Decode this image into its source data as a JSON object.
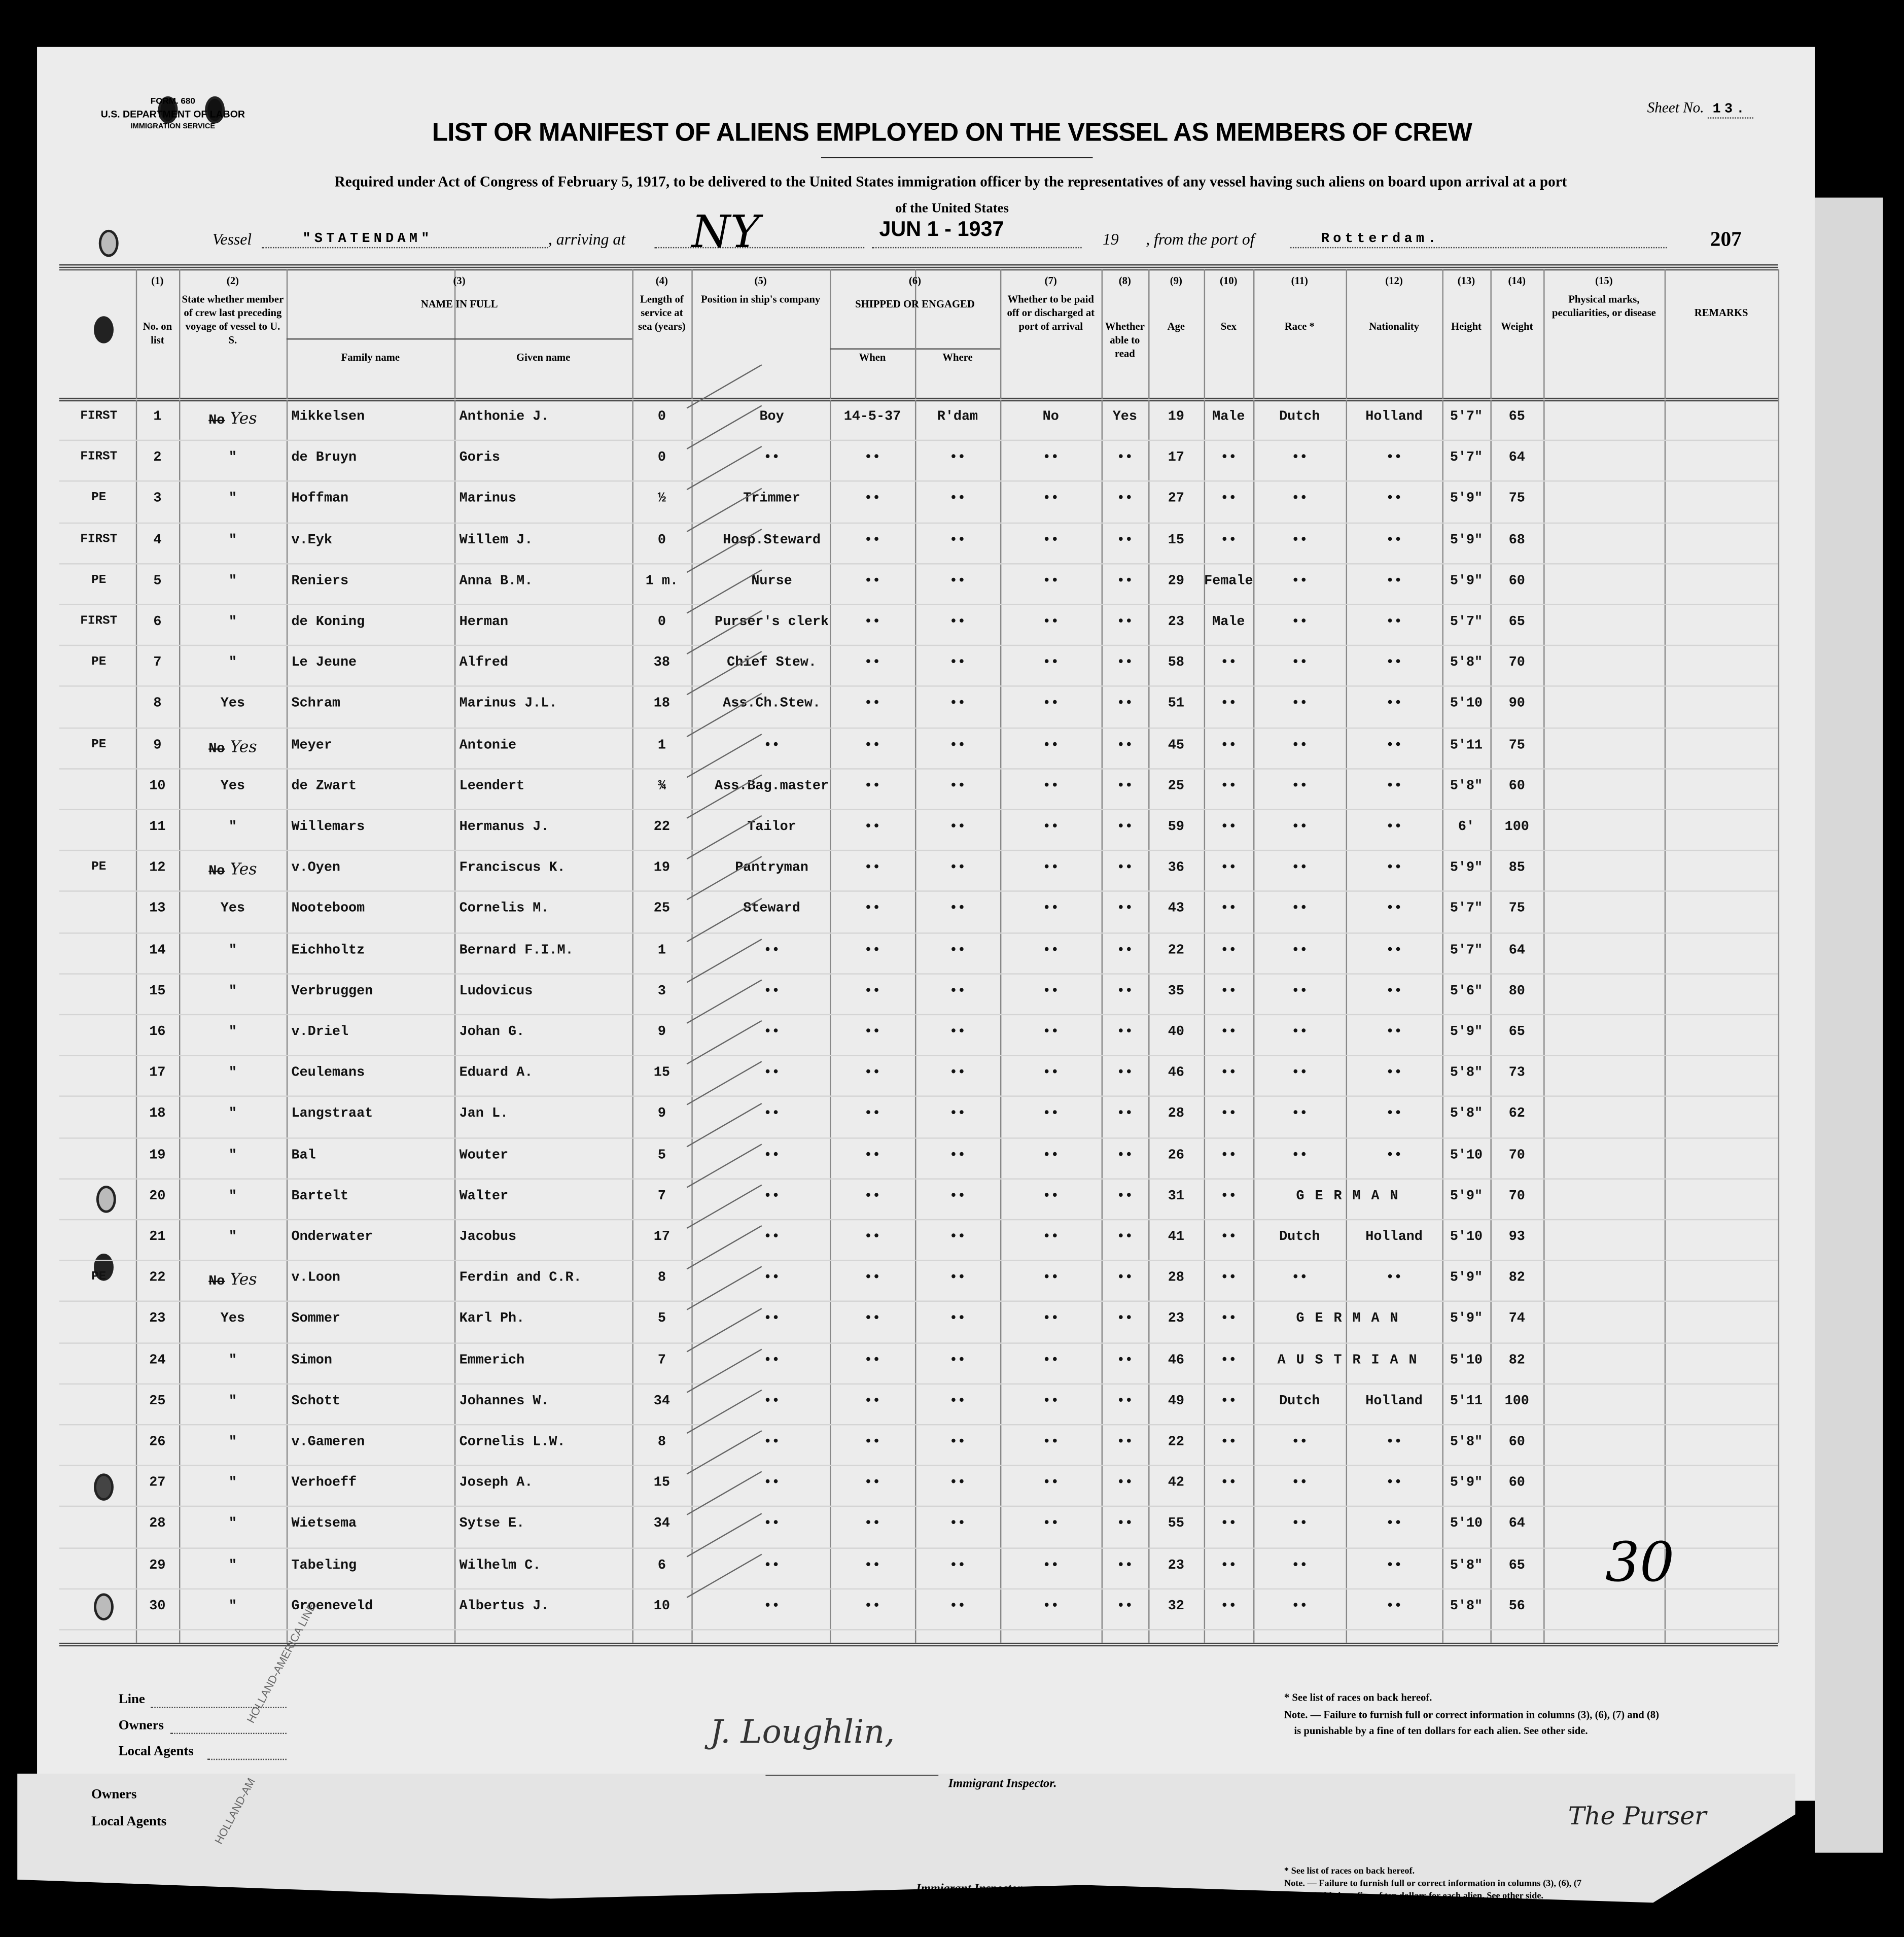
{
  "form": {
    "number": "FORM. 680",
    "department": "U.S. DEPARTMENT OF LABOR",
    "service": "IMMIGRATION SERVICE"
  },
  "sheet": {
    "label": "Sheet No.",
    "value": "13."
  },
  "title": "LIST OR MANIFEST OF ALIENS EMPLOYED ON THE VESSEL AS MEMBERS OF CREW",
  "subtitle": "Required under Act of Congress of February 5, 1917, to be delivered to the United States immigration officer by the representatives of any vessel having such aliens on board upon arrival at a port",
  "subtitle2": "of the United States",
  "vessel": {
    "label": "Vessel",
    "name": "\"STATENDAM\"",
    "arriving_label": ", arriving at",
    "arriving_at": "NY",
    "date_stamp": "JUN 1 - 1937",
    "year_label": "19",
    "from_label": ", from the port of",
    "port": "Rotterdam.",
    "page_number": "207"
  },
  "columns": [
    {
      "num": "(1)",
      "label": "No. on list"
    },
    {
      "num": "(2)",
      "label": "State whether member of crew last preceding voyage of vessel to U. S."
    },
    {
      "num": "(3)",
      "label": "NAME IN FULL",
      "sub": [
        "Family name",
        "Given name"
      ]
    },
    {
      "num": "(4)",
      "label": "Length of service at sea (years)"
    },
    {
      "num": "(5)",
      "label": "Position in ship's company"
    },
    {
      "num": "(6)",
      "label": "SHIPPED OR ENGAGED",
      "sub": [
        "When",
        "Where"
      ]
    },
    {
      "num": "(7)",
      "label": "Whether to be paid off or discharged at port of arrival"
    },
    {
      "num": "(8)",
      "label": "Whether able to read"
    },
    {
      "num": "(9)",
      "label": "Age"
    },
    {
      "num": "(10)",
      "label": "Sex"
    },
    {
      "num": "(11)",
      "label": "Race *"
    },
    {
      "num": "(12)",
      "label": "Nationality"
    },
    {
      "num": "(13)",
      "label": "Height"
    },
    {
      "num": "(14)",
      "label": "Weight"
    },
    {
      "num": "(15)",
      "label": "Physical marks, peculiarities, or disease"
    },
    {
      "num": "",
      "label": "REMARKS"
    }
  ],
  "rows": [
    {
      "margin": "FIRST",
      "no": "1",
      "state_struck": "No",
      "state": "Yes",
      "family": "Mikkelsen",
      "given": "Anthonie J.",
      "length": "0",
      "position": "Boy",
      "when": "14-5-37",
      "where": "R'dam",
      "paid": "No",
      "read": "Yes",
      "age": "19",
      "sex": "Male",
      "race": "Dutch",
      "nationality": "Holland",
      "height": "5'7\"",
      "weight": "65"
    },
    {
      "margin": "FIRST",
      "no": "2",
      "state": "\"",
      "family": "de Bruyn",
      "given": "Goris",
      "length": "0",
      "position": "••",
      "when": "••",
      "where": "••",
      "paid": "••",
      "read": "••",
      "age": "17",
      "sex": "••",
      "race": "••",
      "nationality": "••",
      "height": "5'7\"",
      "weight": "64"
    },
    {
      "margin": "PE",
      "no": "3",
      "state": "\"",
      "family": "Hoffman",
      "given": "Marinus",
      "length": "½",
      "position": "Trimmer",
      "when": "••",
      "where": "••",
      "paid": "••",
      "read": "••",
      "age": "27",
      "sex": "••",
      "race": "••",
      "nationality": "••",
      "height": "5'9\"",
      "weight": "75"
    },
    {
      "margin": "FIRST",
      "no": "4",
      "state": "\"",
      "family": "v.Eyk",
      "given": "Willem J.",
      "length": "0",
      "position": "Hosp.Steward",
      "when": "••",
      "where": "••",
      "paid": "••",
      "read": "••",
      "age": "15",
      "sex": "••",
      "race": "••",
      "nationality": "••",
      "height": "5'9\"",
      "weight": "68"
    },
    {
      "margin": "PE",
      "no": "5",
      "state": "\"",
      "family": "Reniers",
      "given": "Anna B.M.",
      "length": "1 m.",
      "position": "Nurse",
      "when": "••",
      "where": "••",
      "paid": "••",
      "read": "••",
      "age": "29",
      "sex": "Female",
      "race": "••",
      "nationality": "••",
      "height": "5'9\"",
      "weight": "60"
    },
    {
      "margin": "FIRST",
      "no": "6",
      "state": "\"",
      "family": "de Koning",
      "given": "Herman",
      "length": "0",
      "position": "Purser's clerk",
      "when": "••",
      "where": "••",
      "paid": "••",
      "read": "••",
      "age": "23",
      "sex": "Male",
      "race": "••",
      "nationality": "••",
      "height": "5'7\"",
      "weight": "65"
    },
    {
      "margin": "PE",
      "no": "7",
      "state": "\"",
      "family": "Le Jeune",
      "given": "Alfred",
      "length": "38",
      "position": "Chief Stew.",
      "when": "••",
      "where": "••",
      "paid": "••",
      "read": "••",
      "age": "58",
      "sex": "••",
      "race": "••",
      "nationality": "••",
      "height": "5'8\"",
      "weight": "70"
    },
    {
      "margin": "",
      "no": "8",
      "state": "Yes",
      "family": "Schram",
      "given": "Marinus J.L.",
      "length": "18",
      "position": "Ass.Ch.Stew.",
      "when": "••",
      "where": "••",
      "paid": "••",
      "read": "••",
      "age": "51",
      "sex": "••",
      "race": "••",
      "nationality": "••",
      "height": "5'10",
      "weight": "90"
    },
    {
      "margin": "PE",
      "no": "9",
      "state_struck": "No",
      "state": "Yes",
      "family": "Meyer",
      "given": "Antonie",
      "length": "1",
      "position": "••",
      "when": "••",
      "where": "••",
      "paid": "••",
      "read": "••",
      "age": "45",
      "sex": "••",
      "race": "••",
      "nationality": "••",
      "height": "5'11",
      "weight": "75"
    },
    {
      "margin": "",
      "no": "10",
      "state": "Yes",
      "family": "de Zwart",
      "given": "Leendert",
      "length": "¾",
      "position": "Ass.Bag.master",
      "when": "••",
      "where": "••",
      "paid": "••",
      "read": "••",
      "age": "25",
      "sex": "••",
      "race": "••",
      "nationality": "••",
      "height": "5'8\"",
      "weight": "60"
    },
    {
      "margin": "",
      "no": "11",
      "state": "\"",
      "family": "Willemars",
      "given": "Hermanus J.",
      "length": "22",
      "position": "Tailor",
      "when": "••",
      "where": "••",
      "paid": "••",
      "read": "••",
      "age": "59",
      "sex": "••",
      "race": "••",
      "nationality": "••",
      "height": "6'",
      "weight": "100"
    },
    {
      "margin": "PE",
      "no": "12",
      "state_struck": "No",
      "state": "Yes",
      "family": "v.Oyen",
      "given": "Franciscus K.",
      "length": "19",
      "position": "Pantryman",
      "when": "••",
      "where": "••",
      "paid": "••",
      "read": "••",
      "age": "36",
      "sex": "••",
      "race": "••",
      "nationality": "••",
      "height": "5'9\"",
      "weight": "85"
    },
    {
      "margin": "",
      "no": "13",
      "state": "Yes",
      "family": "Nooteboom",
      "given": "Cornelis M.",
      "length": "25",
      "position": "Steward",
      "when": "••",
      "where": "••",
      "paid": "••",
      "read": "••",
      "age": "43",
      "sex": "••",
      "race": "••",
      "nationality": "••",
      "height": "5'7\"",
      "weight": "75"
    },
    {
      "margin": "",
      "no": "14",
      "state": "\"",
      "family": "Eichholtz",
      "given": "Bernard F.I.M.",
      "length": "1",
      "position": "••",
      "when": "••",
      "where": "••",
      "paid": "••",
      "read": "••",
      "age": "22",
      "sex": "••",
      "race": "••",
      "nationality": "••",
      "height": "5'7\"",
      "weight": "64"
    },
    {
      "margin": "",
      "no": "15",
      "state": "\"",
      "family": "Verbruggen",
      "given": "Ludovicus",
      "length": "3",
      "position": "••",
      "when": "••",
      "where": "••",
      "paid": "••",
      "read": "••",
      "age": "35",
      "sex": "••",
      "race": "••",
      "nationality": "••",
      "height": "5'6\"",
      "weight": "80"
    },
    {
      "margin": "",
      "no": "16",
      "state": "\"",
      "family": "v.Driel",
      "given": "Johan G.",
      "length": "9",
      "position": "••",
      "when": "••",
      "where": "••",
      "paid": "••",
      "read": "••",
      "age": "40",
      "sex": "••",
      "race": "••",
      "nationality": "••",
      "height": "5'9\"",
      "weight": "65"
    },
    {
      "margin": "",
      "no": "17",
      "state": "\"",
      "family": "Ceulemans",
      "given": "Eduard A.",
      "length": "15",
      "position": "••",
      "when": "••",
      "where": "••",
      "paid": "••",
      "read": "••",
      "age": "46",
      "sex": "••",
      "race": "••",
      "nationality": "••",
      "height": "5'8\"",
      "weight": "73"
    },
    {
      "margin": "",
      "no": "18",
      "state": "\"",
      "family": "Langstraat",
      "given": "Jan L.",
      "length": "9",
      "position": "••",
      "when": "••",
      "where": "••",
      "paid": "••",
      "read": "••",
      "age": "28",
      "sex": "••",
      "race": "••",
      "nationality": "••",
      "height": "5'8\"",
      "weight": "62"
    },
    {
      "margin": "",
      "no": "19",
      "state": "\"",
      "family": "Bal",
      "given": "Wouter",
      "length": "5",
      "position": "••",
      "when": "••",
      "where": "••",
      "paid": "••",
      "read": "••",
      "age": "26",
      "sex": "••",
      "race": "••",
      "nationality": "••",
      "height": "5'10",
      "weight": "70"
    },
    {
      "margin": "",
      "no": "20",
      "state": "\"",
      "family": "Bartelt",
      "given": "Walter",
      "length": "7",
      "position": "••",
      "when": "••",
      "where": "••",
      "paid": "••",
      "read": "••",
      "age": "31",
      "sex": "••",
      "race": "G E R M A N",
      "nationality": "",
      "height": "5'9\"",
      "weight": "70"
    },
    {
      "margin": "",
      "no": "21",
      "state": "\"",
      "family": "Onderwater",
      "given": "Jacobus",
      "length": "17",
      "position": "••",
      "when": "••",
      "where": "••",
      "paid": "••",
      "read": "••",
      "age": "41",
      "sex": "••",
      "race": "Dutch",
      "nationality": "Holland",
      "height": "5'10",
      "weight": "93"
    },
    {
      "margin": "PE",
      "no": "22",
      "state_struck": "No",
      "state": "Yes",
      "family": "v.Loon",
      "given": "Ferdin and C.R.",
      "length": "8",
      "position": "••",
      "when": "••",
      "where": "••",
      "paid": "••",
      "read": "••",
      "age": "28",
      "sex": "••",
      "race": "••",
      "nationality": "••",
      "height": "5'9\"",
      "weight": "82"
    },
    {
      "margin": "",
      "no": "23",
      "state": "Yes",
      "family": "Sommer",
      "given": "Karl Ph.",
      "length": "5",
      "position": "••",
      "when": "••",
      "where": "••",
      "paid": "••",
      "read": "••",
      "age": "23",
      "sex": "••",
      "race": "G E R M A N",
      "nationality": "",
      "height": "5'9\"",
      "weight": "74"
    },
    {
      "margin": "",
      "no": "24",
      "state": "\"",
      "family": "Simon",
      "given": "Emmerich",
      "length": "7",
      "position": "••",
      "when": "••",
      "where": "••",
      "paid": "••",
      "read": "••",
      "age": "46",
      "sex": "••",
      "race": "A U S T R I A N",
      "nationality": "",
      "height": "5'10",
      "weight": "82"
    },
    {
      "margin": "",
      "no": "25",
      "state": "\"",
      "family": "Schott",
      "given": "Johannes W.",
      "length": "34",
      "position": "••",
      "when": "••",
      "where": "••",
      "paid": "••",
      "read": "••",
      "age": "49",
      "sex": "••",
      "race": "Dutch",
      "nationality": "Holland",
      "height": "5'11",
      "weight": "100"
    },
    {
      "margin": "",
      "no": "26",
      "state": "\"",
      "family": "v.Gameren",
      "given": "Cornelis L.W.",
      "length": "8",
      "position": "••",
      "when": "••",
      "where": "••",
      "paid": "••",
      "read": "••",
      "age": "22",
      "sex": "••",
      "race": "••",
      "nationality": "••",
      "height": "5'8\"",
      "weight": "60"
    },
    {
      "margin": "",
      "no": "27",
      "state": "\"",
      "family": "Verhoeff",
      "given": "Joseph A.",
      "length": "15",
      "position": "••",
      "when": "••",
      "where": "••",
      "paid": "••",
      "read": "••",
      "age": "42",
      "sex": "••",
      "race": "••",
      "nationality": "••",
      "height": "5'9\"",
      "weight": "60"
    },
    {
      "margin": "",
      "no": "28",
      "state": "\"",
      "family": "Wietsema",
      "given": "Sytse E.",
      "length": "34",
      "position": "••",
      "when": "••",
      "where": "••",
      "paid": "••",
      "read": "••",
      "age": "55",
      "sex": "••",
      "race": "••",
      "nationality": "••",
      "height": "5'10",
      "weight": "64"
    },
    {
      "margin": "",
      "no": "29",
      "state": "\"",
      "family": "Tabeling",
      "given": "Wilhelm C.",
      "length": "6",
      "position": "••",
      "when": "••",
      "where": "••",
      "paid": "••",
      "read": "••",
      "age": "23",
      "sex": "••",
      "race": "••",
      "nationality": "••",
      "height": "5'8\"",
      "weight": "65"
    },
    {
      "margin": "",
      "no": "30",
      "state": "\"",
      "family": "Groeneveld",
      "given": "Albertus J.",
      "length": "10",
      "position": "••",
      "when": "••",
      "where": "••",
      "paid": "••",
      "read": "••",
      "age": "32",
      "sex": "••",
      "race": "••",
      "nationality": "••",
      "height": "5'8\"",
      "weight": "56"
    }
  ],
  "total_handwritten": "30",
  "footer": {
    "line_label": "Line",
    "owners_label": "Owners",
    "agents_label": "Local Agents",
    "line_stamp": "HOLLAND-AMERICA LINE",
    "inspector_signature": "J. Loughlin,",
    "inspector_label": "Immigrant Inspector.",
    "races_note": "* See list of races on back hereof.",
    "note_1": "Note. — Failure to furnish full or correct information in columns (3), (6), (7) and (8)",
    "note_2": "is punishable by a fine of ten dollars for each alien.  See other side."
  },
  "footer2": {
    "owners_label": "Owners",
    "agents_label": "Local Agents",
    "line_stamp": "HOLLAND-AM",
    "inspector_label": "Immigrant Inspector.",
    "races_note": "* See list of races on back hereof.",
    "note_1": "Note. — Failure to furnish full or correct information in columns (3), (6), (7",
    "note_2": "is punishable by a fine of ten dollars for each alien.  See other side.",
    "purser_signature": "The Purser"
  }
}
